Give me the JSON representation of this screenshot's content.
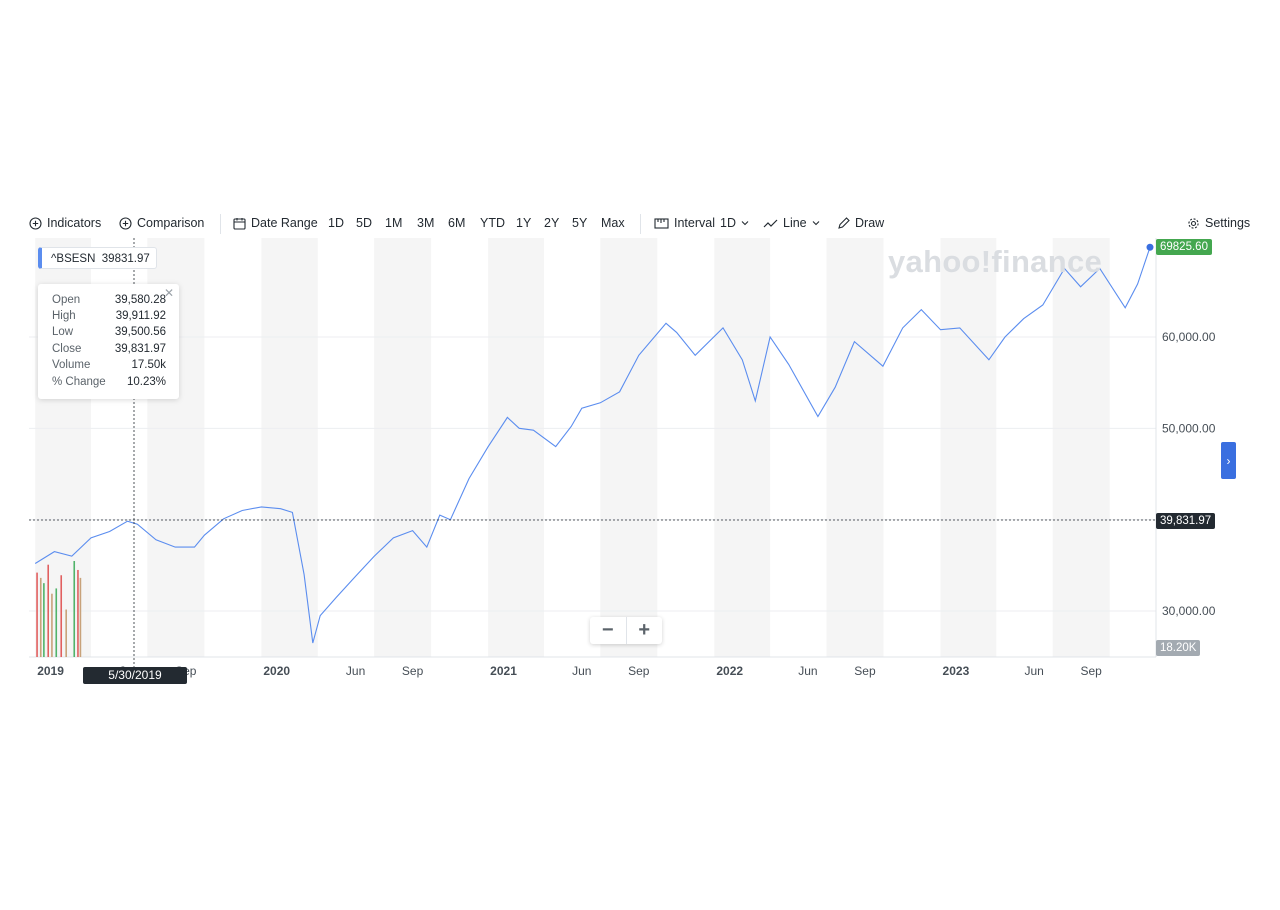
{
  "toolbar": {
    "indicators": "Indicators",
    "comparison": "Comparison",
    "date_range": "Date Range",
    "ranges": [
      "1D",
      "5D",
      "1M",
      "3M",
      "6M",
      "YTD",
      "1Y",
      "2Y",
      "5Y",
      "Max"
    ],
    "interval_label": "Interval",
    "interval_value": "1D",
    "chart_type": "Line",
    "draw": "Draw",
    "settings": "Settings"
  },
  "symbol_tag": {
    "symbol": "^BSESN",
    "value": "39831.97"
  },
  "tooltip": {
    "rows": [
      {
        "label": "Open",
        "value": "39,580.28"
      },
      {
        "label": "High",
        "value": "39,911.92"
      },
      {
        "label": "Low",
        "value": "39,500.56"
      },
      {
        "label": "Close",
        "value": "39,831.97"
      },
      {
        "label": "Volume",
        "value": "17.50k"
      },
      {
        "label": "% Change",
        "value": "10.23%"
      }
    ]
  },
  "watermark": "yahoo!finance",
  "last_price_tag": "69825.60",
  "crosshair_price_tag": "39,831.97",
  "volume_tag": "18.20K",
  "crosshair_date": "5/30/2019",
  "zoom": {
    "minus": "−",
    "plus": "+"
  },
  "colors": {
    "line": "#5b8def",
    "last_tag": "#44a74f",
    "dark_tag": "#232a31",
    "volume_tag": "#a3aab1",
    "shade": "#f5f5f5"
  },
  "chart_data": {
    "type": "line",
    "series": [
      {
        "name": "^BSESN",
        "points": [
          [
            "2019-01-01",
            35200
          ],
          [
            "2019-02-01",
            36500
          ],
          [
            "2019-03-01",
            36000
          ],
          [
            "2019-04-01",
            38000
          ],
          [
            "2019-05-01",
            38700
          ],
          [
            "2019-05-30",
            39832
          ],
          [
            "2019-06-15",
            39500
          ],
          [
            "2019-07-15",
            37800
          ],
          [
            "2019-08-15",
            37000
          ],
          [
            "2019-09-15",
            37000
          ],
          [
            "2019-10-01",
            38300
          ],
          [
            "2019-11-01",
            40100
          ],
          [
            "2019-12-01",
            41000
          ],
          [
            "2020-01-01",
            41400
          ],
          [
            "2020-02-01",
            41200
          ],
          [
            "2020-02-20",
            40800
          ],
          [
            "2020-03-10",
            34000
          ],
          [
            "2020-03-24",
            26500
          ],
          [
            "2020-04-05",
            29500
          ],
          [
            "2020-05-01",
            31500
          ],
          [
            "2020-06-01",
            33800
          ],
          [
            "2020-07-01",
            36000
          ],
          [
            "2020-08-01",
            38000
          ],
          [
            "2020-09-01",
            38800
          ],
          [
            "2020-09-24",
            37000
          ],
          [
            "2020-10-15",
            40500
          ],
          [
            "2020-11-01",
            40000
          ],
          [
            "2020-12-01",
            44500
          ],
          [
            "2021-01-01",
            48000
          ],
          [
            "2021-02-01",
            51200
          ],
          [
            "2021-02-20",
            50000
          ],
          [
            "2021-03-15",
            49800
          ],
          [
            "2021-04-20",
            48000
          ],
          [
            "2021-05-15",
            50200
          ],
          [
            "2021-06-01",
            52200
          ],
          [
            "2021-07-01",
            52800
          ],
          [
            "2021-08-01",
            54000
          ],
          [
            "2021-09-01",
            58000
          ],
          [
            "2021-10-15",
            61500
          ],
          [
            "2021-11-01",
            60500
          ],
          [
            "2021-12-01",
            58000
          ],
          [
            "2022-01-15",
            61000
          ],
          [
            "2022-02-15",
            57500
          ],
          [
            "2022-03-08",
            53000
          ],
          [
            "2022-04-01",
            60000
          ],
          [
            "2022-05-01",
            57000
          ],
          [
            "2022-06-17",
            51300
          ],
          [
            "2022-07-15",
            54500
          ],
          [
            "2022-08-15",
            59500
          ],
          [
            "2022-09-30",
            56800
          ],
          [
            "2022-11-01",
            61000
          ],
          [
            "2022-12-01",
            63000
          ],
          [
            "2023-01-01",
            60800
          ],
          [
            "2023-02-01",
            61000
          ],
          [
            "2023-03-20",
            57500
          ],
          [
            "2023-04-15",
            60000
          ],
          [
            "2023-05-15",
            62000
          ],
          [
            "2023-06-15",
            63500
          ],
          [
            "2023-07-20",
            67500
          ],
          [
            "2023-08-15",
            65500
          ],
          [
            "2023-09-15",
            67500
          ],
          [
            "2023-10-26",
            63200
          ],
          [
            "2023-11-15",
            65800
          ],
          [
            "2023-12-05",
            69825.6
          ]
        ]
      }
    ],
    "volume_bars": [
      {
        "date": "2019-01-04",
        "value": 16000
      },
      {
        "date": "2019-01-10",
        "value": 15000
      },
      {
        "date": "2019-01-15",
        "value": 14000
      },
      {
        "date": "2019-01-22",
        "value": 17500
      },
      {
        "date": "2019-01-28",
        "value": 12000
      },
      {
        "date": "2019-02-04",
        "value": 13000
      },
      {
        "date": "2019-02-12",
        "value": 15500
      },
      {
        "date": "2019-02-20",
        "value": 9000
      },
      {
        "date": "2019-03-05",
        "value": 18200
      },
      {
        "date": "2019-03-11",
        "value": 16500
      },
      {
        "date": "2019-03-15",
        "value": 15000
      }
    ],
    "x_ticks": [
      "2019",
      "Jun",
      "Sep",
      "2020",
      "Jun",
      "Sep",
      "2021",
      "Jun",
      "Sep",
      "2022",
      "Jun",
      "Sep",
      "2023",
      "Jun",
      "Sep"
    ],
    "y_ticks": [
      "30,000.00",
      "50,000.00",
      "60,000.00"
    ],
    "ylim": [
      25000,
      71500
    ],
    "grid": true
  }
}
